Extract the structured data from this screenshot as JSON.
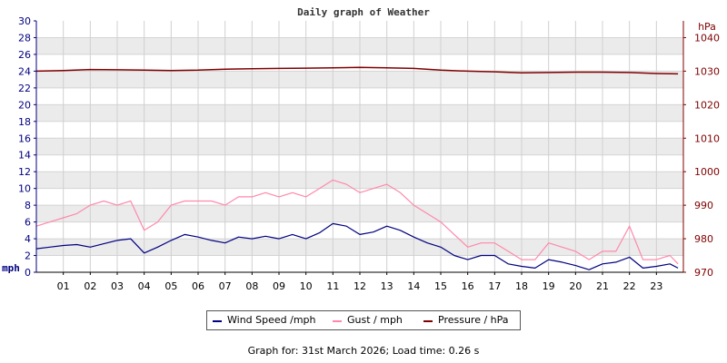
{
  "chart_data": {
    "type": "line",
    "title": "Daily graph of Weather",
    "left_axis": {
      "unit_label": "mph",
      "ylim": [
        0,
        30
      ],
      "ticks": [
        "0",
        "2",
        "4",
        "6",
        "8",
        "10",
        "12",
        "14",
        "16",
        "18",
        "20",
        "22",
        "24",
        "26",
        "28",
        "30"
      ],
      "color": "#000080"
    },
    "right_axis": {
      "unit_label": "hPa",
      "ylim": [
        970,
        1045
      ],
      "ticks": [
        "970",
        "980",
        "990",
        "1000",
        "1010",
        "1020",
        "1030",
        "1040"
      ],
      "color": "#800000"
    },
    "x_axis": {
      "xlim": [
        0,
        24
      ],
      "ticks": [
        "01",
        "02",
        "03",
        "04",
        "05",
        "06",
        "07",
        "08",
        "09",
        "10",
        "11",
        "12",
        "13",
        "14",
        "15",
        "16",
        "17",
        "18",
        "19",
        "20",
        "21",
        "22",
        "23"
      ]
    },
    "grid": true,
    "legend": "bottom",
    "series": [
      {
        "name": "Wind Speed /mph",
        "axis": "left",
        "color": "#000080",
        "x": [
          0,
          0.5,
          1,
          1.5,
          2,
          2.5,
          3,
          3.5,
          4,
          4.5,
          5,
          5.5,
          6,
          6.5,
          7,
          7.5,
          8,
          8.5,
          9,
          9.5,
          10,
          10.5,
          11,
          11.5,
          12,
          12.5,
          13,
          13.5,
          14,
          14.5,
          15,
          15.5,
          16,
          16.5,
          17,
          17.5,
          18,
          18.5,
          19,
          19.5,
          20,
          20.5,
          21,
          21.5,
          22,
          22.5,
          23,
          23.5,
          23.8
        ],
        "values": [
          2.8,
          3.0,
          3.2,
          3.3,
          3.0,
          3.4,
          3.8,
          4.0,
          2.3,
          3.0,
          3.8,
          4.5,
          4.2,
          3.8,
          3.5,
          4.2,
          4.0,
          4.3,
          4.0,
          4.5,
          4.0,
          4.7,
          5.8,
          5.5,
          4.5,
          4.8,
          5.5,
          5.0,
          4.2,
          3.5,
          3.0,
          2.0,
          1.5,
          2.0,
          2.0,
          1.0,
          0.7,
          0.5,
          1.5,
          1.2,
          0.8,
          0.3,
          1.0,
          1.2,
          1.8,
          0.5,
          0.7,
          1.0,
          0.5
        ]
      },
      {
        "name": "Gust / mph",
        "axis": "left",
        "color": "#ff88aa",
        "x": [
          0,
          0.5,
          1,
          1.5,
          2,
          2.5,
          3,
          3.5,
          4,
          4.5,
          5,
          5.5,
          6,
          6.5,
          7,
          7.5,
          8,
          8.5,
          9,
          9.5,
          10,
          10.5,
          11,
          11.5,
          12,
          12.5,
          13,
          13.5,
          14,
          14.5,
          15,
          15.5,
          16,
          16.5,
          17,
          17.5,
          18,
          18.5,
          19,
          19.5,
          20,
          20.5,
          21,
          21.5,
          22,
          22.5,
          23,
          23.5,
          23.8
        ],
        "values": [
          5.5,
          6.0,
          6.5,
          7.0,
          8.0,
          8.5,
          8.0,
          8.5,
          5.0,
          6.0,
          8.0,
          8.5,
          8.5,
          8.5,
          8.0,
          9.0,
          9.0,
          9.5,
          9.0,
          9.5,
          9.0,
          10.0,
          11.0,
          10.5,
          9.5,
          10.0,
          10.5,
          9.5,
          8.0,
          7.0,
          6.0,
          4.5,
          3.0,
          3.5,
          3.5,
          2.5,
          1.5,
          1.5,
          3.5,
          3.0,
          2.5,
          1.5,
          2.5,
          2.5,
          5.5,
          1.5,
          1.5,
          2.0,
          1.0
        ]
      },
      {
        "name": "Pressure / hPa",
        "axis": "right",
        "color": "#800000",
        "x": [
          0,
          1,
          2,
          3,
          4,
          5,
          6,
          7,
          8,
          9,
          10,
          11,
          12,
          13,
          14,
          15,
          16,
          17,
          18,
          19,
          20,
          21,
          22,
          23,
          23.8
        ],
        "values": [
          1030.0,
          1030.2,
          1030.5,
          1030.4,
          1030.3,
          1030.2,
          1030.3,
          1030.6,
          1030.7,
          1030.8,
          1030.9,
          1031.0,
          1031.1,
          1031.0,
          1030.8,
          1030.3,
          1030.0,
          1029.8,
          1029.5,
          1029.6,
          1029.7,
          1029.7,
          1029.6,
          1029.3,
          1029.2
        ]
      }
    ]
  },
  "footer_text": "Graph for: 31st March 2026; Load time: 0.26 s"
}
